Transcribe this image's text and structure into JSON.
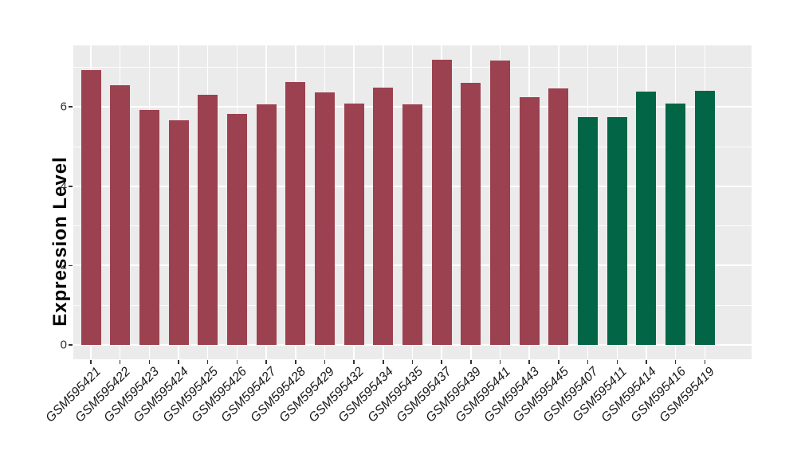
{
  "chart_data": {
    "type": "bar",
    "title": "",
    "xlabel": "",
    "ylabel": "Expression Level",
    "yticks": [
      0,
      2,
      4,
      6
    ],
    "ylim_data": [
      0,
      7.19
    ],
    "axis_expansion_fraction": 0.05,
    "grid": "white major and minor horizontal gridlines plus vertical category gridlines on gray panel",
    "legend": "none",
    "panel_bg_color": "#ebebeb",
    "grid_color": "#ffffff",
    "tick_color": "#333333",
    "group_colors": {
      "red": "#9c4150",
      "green": "#016546"
    },
    "categories": [
      "GSM595421",
      "GSM595422",
      "GSM595423",
      "GSM595424",
      "GSM595425",
      "GSM595426",
      "GSM595427",
      "GSM595428",
      "GSM595429",
      "GSM595432",
      "GSM595434",
      "GSM595435",
      "GSM595437",
      "GSM595439",
      "GSM595441",
      "GSM595443",
      "GSM595445",
      "GSM595407",
      "GSM595411",
      "GSM595414",
      "GSM595416",
      "GSM595419"
    ],
    "bars": [
      {
        "label": "GSM595421",
        "value": 6.92,
        "group": "red"
      },
      {
        "label": "GSM595422",
        "value": 6.55,
        "group": "red"
      },
      {
        "label": "GSM595423",
        "value": 5.92,
        "group": "red"
      },
      {
        "label": "GSM595424",
        "value": 5.67,
        "group": "red"
      },
      {
        "label": "GSM595425",
        "value": 6.31,
        "group": "red"
      },
      {
        "label": "GSM595426",
        "value": 5.82,
        "group": "red"
      },
      {
        "label": "GSM595427",
        "value": 6.06,
        "group": "red"
      },
      {
        "label": "GSM595428",
        "value": 6.62,
        "group": "red"
      },
      {
        "label": "GSM595429",
        "value": 6.37,
        "group": "red"
      },
      {
        "label": "GSM595432",
        "value": 6.09,
        "group": "red"
      },
      {
        "label": "GSM595434",
        "value": 6.49,
        "group": "red"
      },
      {
        "label": "GSM595435",
        "value": 6.06,
        "group": "red"
      },
      {
        "label": "GSM595437",
        "value": 7.19,
        "group": "red"
      },
      {
        "label": "GSM595439",
        "value": 6.61,
        "group": "red"
      },
      {
        "label": "GSM595441",
        "value": 7.16,
        "group": "red"
      },
      {
        "label": "GSM595443",
        "value": 6.24,
        "group": "red"
      },
      {
        "label": "GSM595445",
        "value": 6.46,
        "group": "red"
      },
      {
        "label": "GSM595407",
        "value": 5.75,
        "group": "green"
      },
      {
        "label": "GSM595411",
        "value": 5.75,
        "group": "green"
      },
      {
        "label": "GSM595414",
        "value": 6.38,
        "group": "green"
      },
      {
        "label": "GSM595416",
        "value": 6.09,
        "group": "green"
      },
      {
        "label": "GSM595419",
        "value": 6.4,
        "group": "green"
      }
    ]
  }
}
